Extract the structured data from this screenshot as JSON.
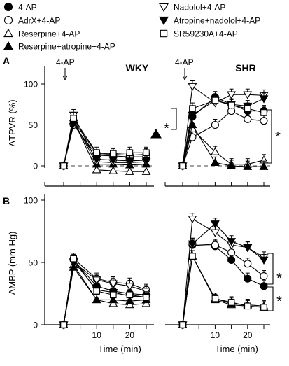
{
  "legend": [
    {
      "label": "4-AP",
      "marker": "filled-circle"
    },
    {
      "label": "AdrX+4-AP",
      "marker": "open-circle"
    },
    {
      "label": "Reserpine+4-AP",
      "marker": "open-triangle-up"
    },
    {
      "label": "Reserpine+atropine+4-AP",
      "marker": "filled-triangle-up"
    },
    {
      "label": "Nadolol+4-AP",
      "marker": "open-triangle-down"
    },
    {
      "label": "Atropine+nadolol+4-AP",
      "marker": "filled-triangle-down"
    },
    {
      "label": "SR59230A+4-AP",
      "marker": "open-square"
    }
  ],
  "panel_labels": {
    "a": "A",
    "b": "B"
  },
  "strain_labels": {
    "wky": "WKY",
    "shr": "SHR"
  },
  "stimulus_label": "4-AP",
  "significance": "*",
  "chart_data": [
    {
      "type": "line",
      "panel": "A",
      "title": "WKY",
      "xlabel": "",
      "ylabel": "ΔTPVR (%)",
      "ylim": [
        -10,
        120
      ],
      "yticks": [
        0,
        50,
        100
      ],
      "xticks": [],
      "x": [
        0,
        3,
        10,
        15,
        20,
        25
      ],
      "series": [
        {
          "name": "4-AP",
          "values": [
            0,
            55,
            15,
            14,
            13,
            14
          ]
        },
        {
          "name": "AdrX+4-AP",
          "values": [
            0,
            50,
            13,
            12,
            11,
            11
          ]
        },
        {
          "name": "Reserpine+4-AP",
          "values": [
            0,
            55,
            -5,
            -6,
            -7,
            -7
          ]
        },
        {
          "name": "Reserpine+atropine+4-AP",
          "values": [
            0,
            55,
            2,
            2,
            1,
            2
          ]
        },
        {
          "name": "Nadolol+4-AP",
          "values": [
            0,
            62,
            5,
            4,
            4,
            5
          ]
        },
        {
          "name": "Atropine+nadolol+4-AP",
          "values": [
            0,
            52,
            8,
            7,
            6,
            7
          ]
        },
        {
          "name": "SR59230A+4-AP",
          "values": [
            0,
            58,
            16,
            15,
            16,
            16
          ]
        }
      ]
    },
    {
      "type": "line",
      "panel": "A",
      "title": "SHR",
      "xlabel": "",
      "ylabel": "",
      "ylim": [
        -10,
        120
      ],
      "yticks": [
        0,
        50,
        100
      ],
      "xticks": [],
      "x": [
        0,
        3,
        10,
        15,
        20,
        25
      ],
      "series": [
        {
          "name": "4-AP",
          "values": [
            0,
            60,
            84,
            75,
            67,
            67
          ]
        },
        {
          "name": "AdrX+4-AP",
          "values": [
            0,
            35,
            50,
            67,
            57,
            55
          ]
        },
        {
          "name": "Reserpine+4-AP",
          "values": [
            0,
            45,
            17,
            2,
            2,
            7
          ]
        },
        {
          "name": "Reserpine+atropine+4-AP",
          "values": [
            0,
            50,
            4,
            0,
            -1,
            -1
          ]
        },
        {
          "name": "Nadolol+4-AP",
          "values": [
            0,
            97,
            77,
            87,
            87,
            86
          ]
        },
        {
          "name": "Atropine+nadolol+4-AP",
          "values": [
            0,
            62,
            80,
            75,
            73,
            82
          ]
        },
        {
          "name": "SR59230A+4-AP",
          "values": [
            0,
            70,
            80,
            74,
            70,
            65
          ]
        }
      ]
    },
    {
      "type": "line",
      "panel": "B",
      "title": "",
      "xlabel": "Time (min)",
      "ylabel": "ΔMBP (mm Hg)",
      "ylim": [
        0,
        100
      ],
      "yticks": [
        0,
        50,
        100
      ],
      "xticks": [
        10,
        20
      ],
      "x": [
        0,
        3,
        10,
        15,
        20,
        25
      ],
      "series": [
        {
          "name": "4-AP",
          "values": [
            0,
            52,
            31,
            27,
            25,
            24
          ]
        },
        {
          "name": "AdrX+4-AP",
          "values": [
            0,
            53,
            37,
            34,
            33,
            28
          ]
        },
        {
          "name": "Reserpine+4-AP",
          "values": [
            0,
            48,
            20,
            17,
            16,
            17
          ]
        },
        {
          "name": "Reserpine+atropine+4-AP",
          "values": [
            0,
            46,
            20,
            20,
            19,
            20
          ]
        },
        {
          "name": "Nadolol+4-AP",
          "values": [
            0,
            50,
            36,
            33,
            31,
            27
          ]
        },
        {
          "name": "Atropine+nadolol+4-AP",
          "values": [
            0,
            51,
            28,
            26,
            23,
            22
          ]
        },
        {
          "name": "SR59230A+4-AP",
          "values": [
            0,
            53,
            27,
            24,
            24,
            22
          ]
        }
      ]
    },
    {
      "type": "line",
      "panel": "B",
      "title": "",
      "xlabel": "Time (min)",
      "ylabel": "",
      "ylim": [
        0,
        100
      ],
      "yticks": [
        0,
        50,
        100
      ],
      "xticks": [
        10,
        20
      ],
      "x": [
        0,
        3,
        10,
        15,
        20,
        25
      ],
      "series": [
        {
          "name": "4-AP",
          "values": [
            0,
            64,
            63,
            52,
            37,
            31
          ]
        },
        {
          "name": "AdrX+4-AP",
          "values": [
            0,
            65,
            64,
            58,
            49,
            39
          ]
        },
        {
          "name": "Reserpine+4-AP",
          "values": [
            0,
            55,
            20,
            16,
            15,
            14
          ]
        },
        {
          "name": "Reserpine+atropine+4-AP",
          "values": [
            0,
            55,
            21,
            17,
            16,
            15
          ]
        },
        {
          "name": "Nadolol+4-AP",
          "values": [
            0,
            85,
            74,
            64,
            62,
            54
          ]
        },
        {
          "name": "Atropine+nadolol+4-AP",
          "values": [
            0,
            65,
            81,
            67,
            62,
            52
          ]
        },
        {
          "name": "SR59230A+4-AP",
          "values": [
            0,
            55,
            21,
            18,
            15,
            14
          ]
        }
      ]
    }
  ]
}
